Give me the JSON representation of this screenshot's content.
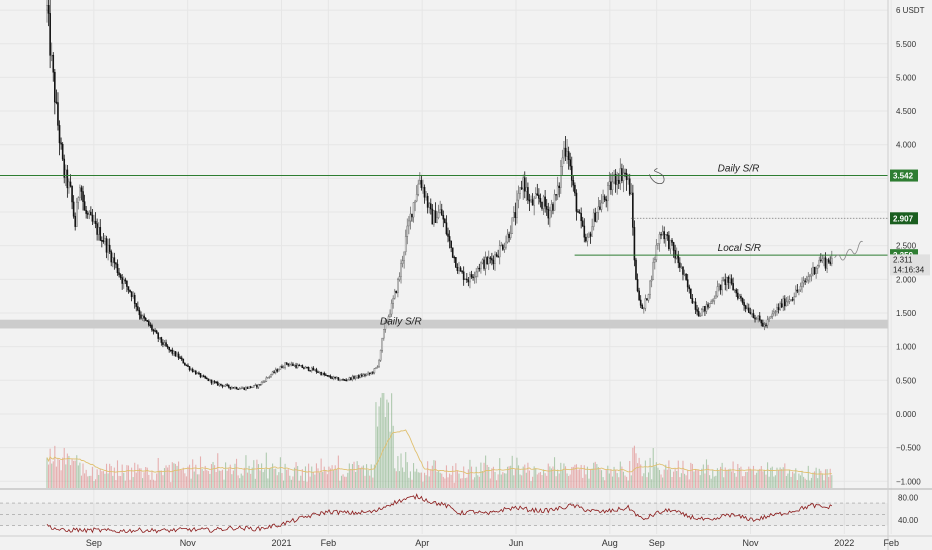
{
  "chart_data": {
    "type": "candlestick",
    "price_axis": {
      "unit_label": "6 USDT",
      "ticks": [
        "6 USDT",
        "5.500",
        "5.000",
        "4.500",
        "4.000",
        "3.500",
        "3.000",
        "2.500",
        "2.000",
        "1.500",
        "1.000",
        "0.500",
        "0.000",
        "−0.500",
        "−1.000"
      ],
      "tick_values": [
        6,
        5.5,
        5,
        4.5,
        4,
        3.5,
        3,
        2.5,
        2,
        1.5,
        1,
        0.5,
        0,
        -0.5,
        -1
      ],
      "range": [
        -1.1,
        6.15
      ]
    },
    "rsi_axis": {
      "ticks": [
        "80.00",
        "40.00"
      ],
      "tick_values": [
        80,
        40
      ],
      "levels": [
        70,
        50,
        30
      ],
      "range": [
        15,
        95
      ]
    },
    "time_axis": {
      "labels": [
        "Sep",
        "Nov",
        "2021",
        "Feb",
        "Apr",
        "Jun",
        "Aug",
        "Sep",
        "Nov",
        "2022",
        "Feb"
      ],
      "label_months": [
        1,
        3,
        5,
        6,
        8,
        10,
        12,
        13,
        15,
        17,
        18
      ]
    },
    "levels": [
      {
        "name": "Daily S/R",
        "value": 3.542,
        "tag": "3.542",
        "style": "solid",
        "color": "#2e7d32"
      },
      {
        "name": "",
        "value": 2.907,
        "tag": "2.907",
        "style": "dotted",
        "color": "#777777"
      },
      {
        "name": "Local S/R",
        "value": 2.359,
        "tag": "2.359",
        "style": "solid",
        "color": "#2e7d32"
      }
    ],
    "zone": {
      "name": "Daily S/R",
      "from": 1.27,
      "to": 1.4,
      "color": "#c8c8c8"
    },
    "annotations": [
      {
        "text": "Daily S/R",
        "price": 3.6,
        "month": 14.3
      },
      {
        "text": "Local S/R",
        "price": 2.42,
        "month": 14.3
      },
      {
        "text": "Daily S/R",
        "price": 1.33,
        "month": 7.1
      }
    ],
    "last_price": {
      "value": 2.311,
      "label": "2.311",
      "countdown": "14:16:34"
    },
    "price_path": [
      [
        0.0,
        6.0
      ],
      [
        0.1,
        5.2
      ],
      [
        0.2,
        4.5
      ],
      [
        0.35,
        3.6
      ],
      [
        0.5,
        3.3
      ],
      [
        0.6,
        2.8
      ],
      [
        0.7,
        3.5
      ],
      [
        0.8,
        3.0
      ],
      [
        1.0,
        2.8
      ],
      [
        1.2,
        2.6
      ],
      [
        1.4,
        2.3
      ],
      [
        1.6,
        2.0
      ],
      [
        1.8,
        1.8
      ],
      [
        2.0,
        1.45
      ],
      [
        2.2,
        1.3
      ],
      [
        2.4,
        1.1
      ],
      [
        2.6,
        0.95
      ],
      [
        2.8,
        0.85
      ],
      [
        3.0,
        0.7
      ],
      [
        3.3,
        0.55
      ],
      [
        3.6,
        0.45
      ],
      [
        3.9,
        0.4
      ],
      [
        4.2,
        0.38
      ],
      [
        4.5,
        0.42
      ],
      [
        4.8,
        0.6
      ],
      [
        5.1,
        0.75
      ],
      [
        5.4,
        0.7
      ],
      [
        5.7,
        0.65
      ],
      [
        6.0,
        0.55
      ],
      [
        6.3,
        0.5
      ],
      [
        6.6,
        0.55
      ],
      [
        6.9,
        0.6
      ],
      [
        7.05,
        0.7
      ],
      [
        7.2,
        1.3
      ],
      [
        7.35,
        1.6
      ],
      [
        7.5,
        2.0
      ],
      [
        7.65,
        2.6
      ],
      [
        7.8,
        3.1
      ],
      [
        7.95,
        3.5
      ],
      [
        8.05,
        3.3
      ],
      [
        8.2,
        2.9
      ],
      [
        8.4,
        3.0
      ],
      [
        8.6,
        2.5
      ],
      [
        8.8,
        2.1
      ],
      [
        9.0,
        2.0
      ],
      [
        9.2,
        2.2
      ],
      [
        9.5,
        2.3
      ],
      [
        9.8,
        2.6
      ],
      [
        10.0,
        3.0
      ],
      [
        10.15,
        3.5
      ],
      [
        10.3,
        3.1
      ],
      [
        10.5,
        3.2
      ],
      [
        10.7,
        3.0
      ],
      [
        10.9,
        3.3
      ],
      [
        11.0,
        3.9
      ],
      [
        11.1,
        4.0
      ],
      [
        11.2,
        3.4
      ],
      [
        11.35,
        2.9
      ],
      [
        11.5,
        2.5
      ],
      [
        11.7,
        3.0
      ],
      [
        11.9,
        3.2
      ],
      [
        12.1,
        3.5
      ],
      [
        12.3,
        3.6
      ],
      [
        12.45,
        3.3
      ],
      [
        12.55,
        2.0
      ],
      [
        12.7,
        1.5
      ],
      [
        12.85,
        1.9
      ],
      [
        13.0,
        2.5
      ],
      [
        13.1,
        2.75
      ],
      [
        13.3,
        2.5
      ],
      [
        13.5,
        2.2
      ],
      [
        13.7,
        1.8
      ],
      [
        13.9,
        1.5
      ],
      [
        14.1,
        1.6
      ],
      [
        14.3,
        1.85
      ],
      [
        14.5,
        2.0
      ],
      [
        14.7,
        1.8
      ],
      [
        14.9,
        1.6
      ],
      [
        15.1,
        1.45
      ],
      [
        15.3,
        1.3
      ],
      [
        15.5,
        1.5
      ],
      [
        15.7,
        1.65
      ],
      [
        15.9,
        1.75
      ],
      [
        16.1,
        1.9
      ],
      [
        16.3,
        2.1
      ],
      [
        16.5,
        2.3
      ],
      [
        16.6,
        2.25
      ],
      [
        16.75,
        2.311
      ]
    ],
    "rsi_path": [
      [
        0.0,
        30
      ],
      [
        0.2,
        24
      ],
      [
        0.4,
        20
      ],
      [
        0.6,
        23
      ],
      [
        0.8,
        21
      ],
      [
        1.0,
        22
      ],
      [
        1.5,
        20
      ],
      [
        2.0,
        22
      ],
      [
        2.5,
        21
      ],
      [
        3.0,
        23
      ],
      [
        3.5,
        22
      ],
      [
        4.0,
        26
      ],
      [
        4.5,
        24
      ],
      [
        5.0,
        32
      ],
      [
        5.5,
        45
      ],
      [
        6.0,
        55
      ],
      [
        6.5,
        52
      ],
      [
        7.0,
        55
      ],
      [
        7.3,
        68
      ],
      [
        7.6,
        76
      ],
      [
        7.9,
        82
      ],
      [
        8.2,
        72
      ],
      [
        8.5,
        66
      ],
      [
        8.8,
        52
      ],
      [
        9.1,
        55
      ],
      [
        9.4,
        50
      ],
      [
        9.7,
        58
      ],
      [
        10.0,
        62
      ],
      [
        10.3,
        58
      ],
      [
        10.6,
        56
      ],
      [
        10.9,
        60
      ],
      [
        11.2,
        66
      ],
      [
        11.5,
        58
      ],
      [
        11.8,
        54
      ],
      [
        12.1,
        57
      ],
      [
        12.4,
        62
      ],
      [
        12.7,
        40
      ],
      [
        13.0,
        52
      ],
      [
        13.3,
        58
      ],
      [
        13.6,
        48
      ],
      [
        13.9,
        42
      ],
      [
        14.2,
        38
      ],
      [
        14.5,
        50
      ],
      [
        14.8,
        45
      ],
      [
        15.1,
        40
      ],
      [
        15.4,
        47
      ],
      [
        15.7,
        52
      ],
      [
        16.0,
        58
      ],
      [
        16.3,
        66
      ],
      [
        16.6,
        62
      ],
      [
        16.75,
        64
      ]
    ]
  }
}
